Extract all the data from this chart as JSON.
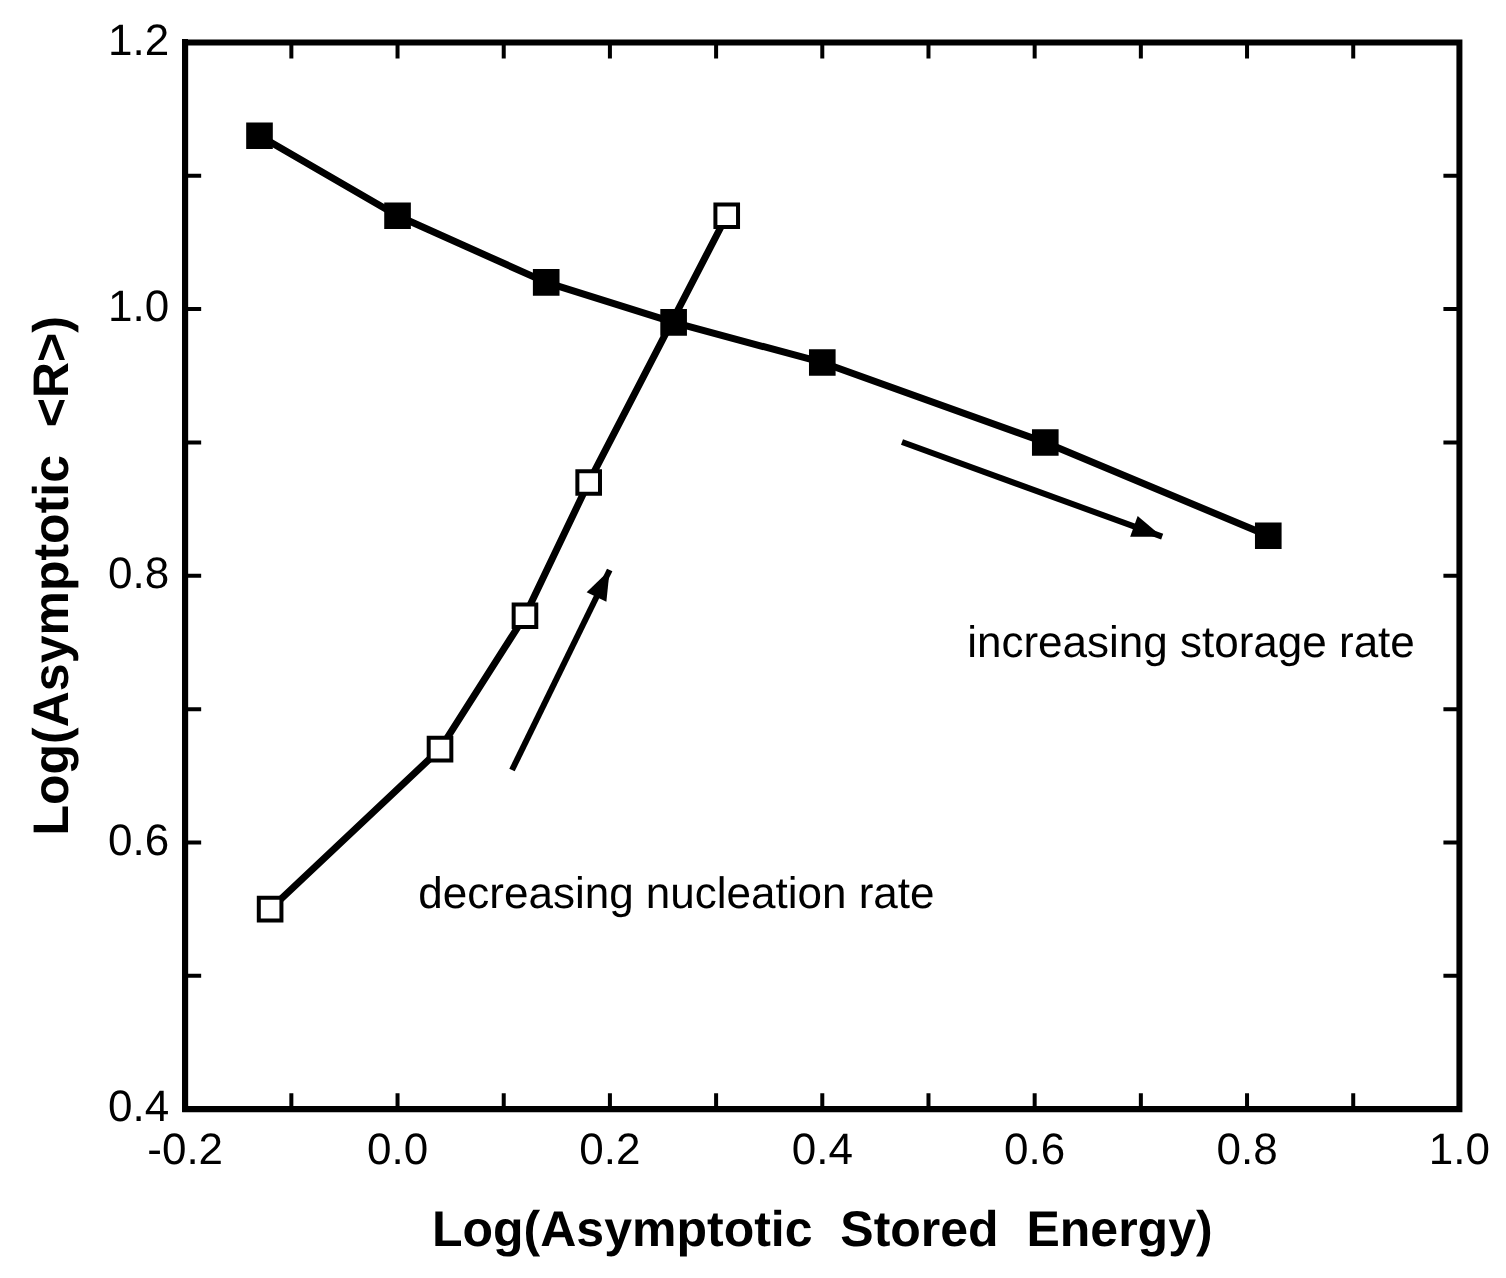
{
  "chart_data": {
    "type": "line",
    "xlabel": "Log(Asymptotic  Stored  Energy)",
    "ylabel": "Log(Asymptotic  <R>)",
    "xlim": [
      -0.2,
      1.0
    ],
    "ylim": [
      0.4,
      1.2
    ],
    "xticks": [
      {
        "value": -0.2,
        "label": "-0.2"
      },
      {
        "value": -0.1,
        "label": null
      },
      {
        "value": 0,
        "label": "0.0"
      },
      {
        "value": 0.1,
        "label": null
      },
      {
        "value": 0.2,
        "label": "0.2"
      },
      {
        "value": 0.3,
        "label": null
      },
      {
        "value": 0.4,
        "label": "0.4"
      },
      {
        "value": 0.5,
        "label": null
      },
      {
        "value": 0.6,
        "label": "0.6"
      },
      {
        "value": 0.7,
        "label": null
      },
      {
        "value": 0.8,
        "label": "0.8"
      },
      {
        "value": 0.9,
        "label": null
      },
      {
        "value": 1.0,
        "label": "1.0"
      }
    ],
    "yticks": [
      {
        "value": 0.4,
        "label": "0.4"
      },
      {
        "value": 0.5,
        "label": null
      },
      {
        "value": 0.6,
        "label": "0.6"
      },
      {
        "value": 0.7,
        "label": null
      },
      {
        "value": 0.8,
        "label": "0.8"
      },
      {
        "value": 0.9,
        "label": null
      },
      {
        "value": 1.0,
        "label": "1.0"
      },
      {
        "value": 1.1,
        "label": null
      },
      {
        "value": 1.2,
        "label": "1.2"
      }
    ],
    "marker": "square",
    "grid": false,
    "legend": false,
    "series": [
      {
        "color": "#000000",
        "colors": [
          "#000000",
          "#000000",
          "#000000",
          "#000000",
          "#000000",
          "#000000",
          "#000000"
        ],
        "x": [
          -0.13,
          0.0,
          0.14,
          0.26,
          0.4,
          0.61,
          0.82
        ],
        "values": [
          1.13,
          1.07,
          1.02,
          0.99,
          0.96,
          0.9,
          0.83
        ]
      },
      {
        "color": "#000000",
        "colors": [
          "#ffffff",
          "#ffffff",
          "#ffffff",
          "#ffffff",
          "#ffffff"
        ],
        "x": [
          -0.12,
          0.04,
          0.12,
          0.18,
          0.31
        ],
        "values": [
          0.55,
          0.67,
          0.77,
          0.87,
          1.07
        ]
      }
    ],
    "annotations": [
      "increasing storage rate",
      "decreasing nucleation rate"
    ]
  }
}
